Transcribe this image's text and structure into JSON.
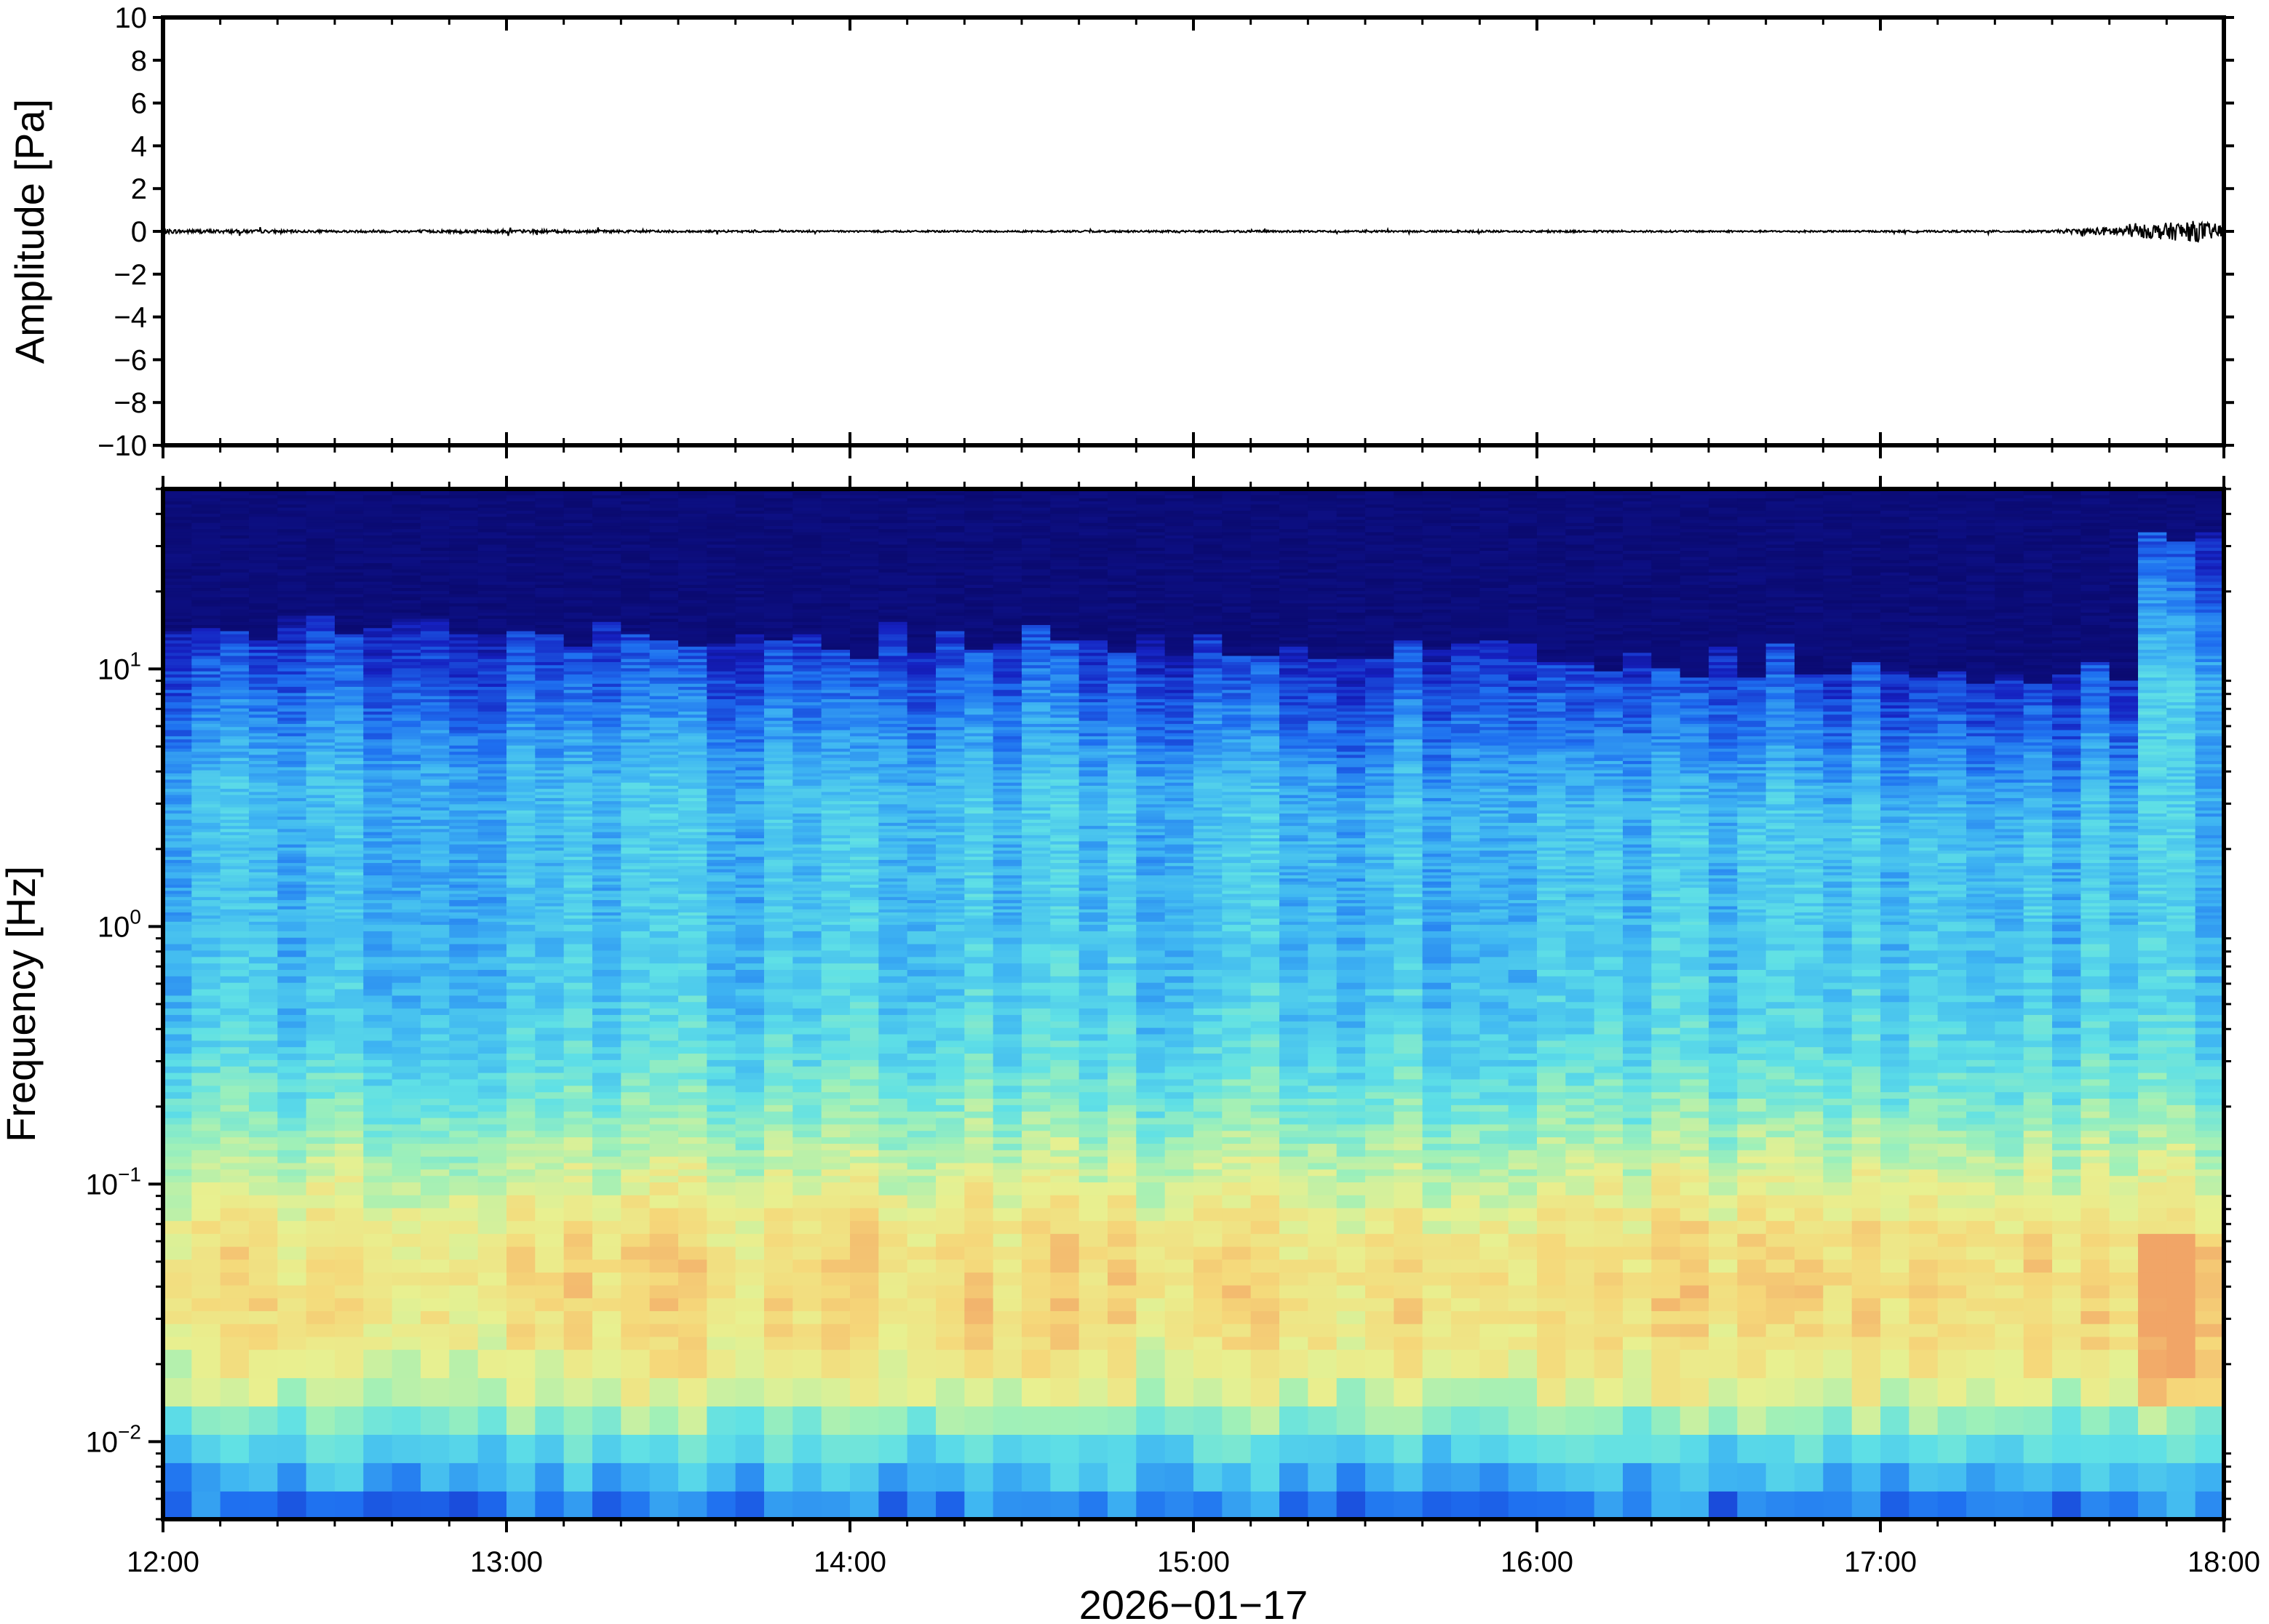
{
  "chart_data": [
    {
      "type": "line",
      "panel": "waveform",
      "ylabel": "Amplitude [Pa]",
      "ylim": [
        -10,
        10
      ],
      "yticks": [
        10,
        8,
        6,
        4,
        2,
        0,
        -2,
        -4,
        -6,
        -8,
        -10
      ],
      "ytick_labels": [
        "10",
        "8",
        "6",
        "4",
        "2",
        "0",
        "−2",
        "−4",
        "−6",
        "−8",
        "−10"
      ],
      "xlim": [
        "12:00",
        "18:00"
      ],
      "series": [
        {
          "x": [
            "12:00",
            "12:30",
            "13:00",
            "13:30",
            "14:00",
            "14:30",
            "15:00",
            "15:30",
            "16:00",
            "16:30",
            "17:00",
            "17:30",
            "17:45",
            "17:50",
            "17:55",
            "18:00"
          ],
          "y": [
            0.1,
            0.05,
            0.08,
            0.05,
            0.04,
            0.04,
            0.05,
            0.04,
            0.05,
            0.04,
            0.04,
            0.05,
            0.3,
            0.4,
            0.5,
            0.3
          ]
        }
      ],
      "grid": false,
      "color": "#000000"
    },
    {
      "type": "heatmap",
      "panel": "spectrogram",
      "ylabel": "Frequency [Hz]",
      "xlabel": "2026−01−17",
      "y_scale": "log",
      "ylim_hz": [
        0.005,
        50
      ],
      "yticks": [
        {
          "base": "10",
          "exp": "1",
          "value": 10
        },
        {
          "base": "10",
          "exp": "0",
          "value": 1
        },
        {
          "base": "10",
          "exp": "−1",
          "value": 0.1
        },
        {
          "base": "10",
          "exp": "−2",
          "value": 0.01
        }
      ],
      "x_tick_labels": [
        "12:00",
        "13:00",
        "14:00",
        "15:00",
        "16:00",
        "17:00",
        "18:00"
      ],
      "colormap": [
        "#0a0a70",
        "#1520c0",
        "#1e6ff0",
        "#3fb6f2",
        "#5fe0e6",
        "#9ff0b8",
        "#e8f090",
        "#f5d87a",
        "#f1a567"
      ],
      "description_levels": {
        "upper_cutoff_hz_by_hour": [
          15,
          14,
          13,
          12,
          11,
          10,
          10,
          30
        ],
        "warm_band_center_hz": 0.04
      },
      "grid": false
    }
  ]
}
